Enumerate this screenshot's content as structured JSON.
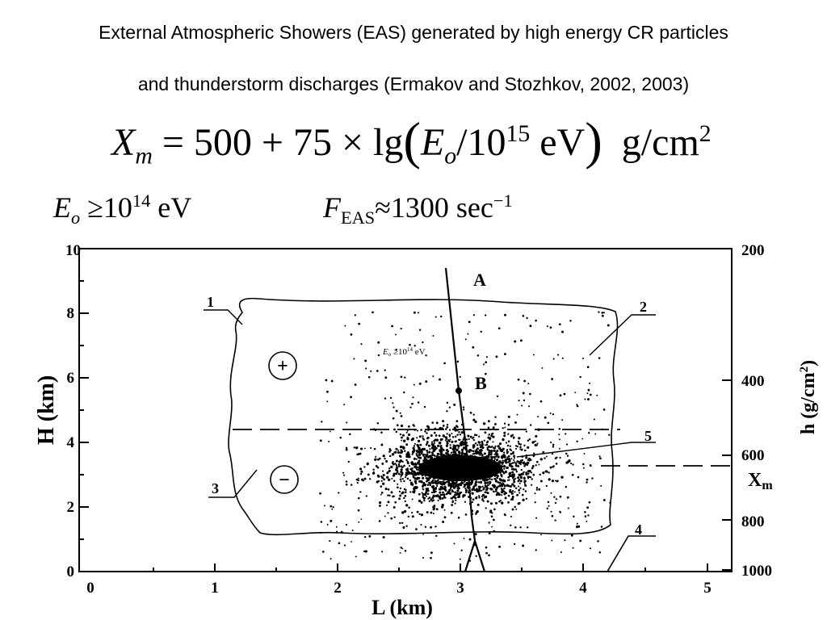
{
  "title": {
    "line1": "External Atmospheric Showers (EAS) generated by high energy CR particles",
    "line2": "and thunderstorm discharges (Ermakov and Stozhkov, 2002, 2003)"
  },
  "formulas": {
    "main": {
      "lhs": "X",
      "lhs_sub": "m",
      "equals_part": " = 500 + 75 × lg",
      "open_paren": "(",
      "E": "E",
      "E_sub": "o",
      "slash_base": "/10",
      "exponent": "15",
      "unit_ev": " eV",
      "close_paren": ")",
      "units": "  g/cm",
      "units_exp": "2"
    },
    "energy": {
      "E": "E",
      "E_sub": "o",
      "rel": " ≥10",
      "exp": "14",
      "unit": " eV"
    },
    "flux": {
      "F": "F",
      "F_sub": "EAS",
      "rel": "≈1300 sec",
      "exp": "−1"
    }
  },
  "diagram": {
    "left_axis": {
      "label": "H (km)",
      "ticks": [
        "0",
        "2",
        "4",
        "6",
        "8",
        "10"
      ]
    },
    "bottom_axis": {
      "label": "L (km)",
      "ticks": [
        "0",
        "1",
        "2",
        "3",
        "4",
        "5"
      ]
    },
    "right_axis": {
      "label_main": "h (g/cm",
      "label_exp": "2",
      "label_close": ")",
      "ticks": [
        "200",
        "400",
        "600",
        "800",
        "1000"
      ],
      "xm_label": "X",
      "xm_sub": "m"
    },
    "labels": {
      "A": "A",
      "B": "B",
      "n1": "1",
      "n2": "2",
      "n3": "3",
      "n4": "4",
      "n5": "5",
      "plus": "+",
      "minus": "−",
      "inner_formula_E": "E",
      "inner_formula_sub": "o",
      "inner_formula_rest": " ≥10",
      "inner_formula_exp": "14",
      "inner_formula_unit": " eV"
    }
  }
}
